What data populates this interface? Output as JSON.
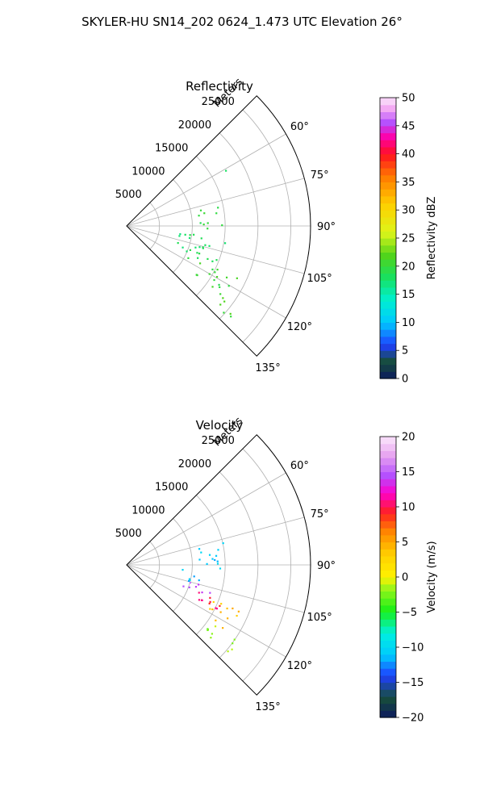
{
  "figure": {
    "suptitle": "SKYLER-HU  SN14_202  0624_1.473 UTC Elevation 26°"
  },
  "chart_data": [
    {
      "type": "polar-sector",
      "title": "Reflectivity",
      "range_label": "Meters",
      "theta_range_deg": [
        45,
        135
      ],
      "r_max": 28000,
      "radial_ticks": [
        5000,
        10000,
        15000,
        20000,
        25000
      ],
      "radial_tick_labels": [
        "5000",
        "10000",
        "15000",
        "20000",
        "25000"
      ],
      "angle_ticks": [
        60,
        75,
        90,
        105,
        120,
        135
      ],
      "angle_tick_labels": [
        "60°",
        "75°",
        "90°",
        "105°",
        "120°",
        "135°"
      ],
      "grid": true,
      "colorbar": {
        "label": "Reflectivity dBZ",
        "min": 0,
        "max": 50,
        "ticks": [
          0,
          5,
          10,
          15,
          20,
          25,
          30,
          35,
          40,
          45,
          50
        ],
        "tick_labels": [
          "0",
          "5",
          "10",
          "15",
          "20",
          "25",
          "30",
          "35",
          "40",
          "45",
          "50"
        ]
      },
      "echo_regions": [
        {
          "angle_deg": [
            76,
            82
          ],
          "range_m": [
            10500,
            15000
          ],
          "value": 19
        },
        {
          "angle_deg": [
            86,
            92
          ],
          "range_m": [
            10500,
            14500
          ],
          "value": 19
        },
        {
          "angle_deg": [
            94,
            103
          ],
          "range_m": [
            8000,
            12000
          ],
          "value": 18
        },
        {
          "angle_deg": [
            103,
            114
          ],
          "range_m": [
            8000,
            15500
          ],
          "value": 18
        },
        {
          "angle_deg": [
            114,
            126
          ],
          "range_m": [
            10000,
            19500
          ],
          "value": 20
        },
        {
          "angle_deg": [
            126,
            132
          ],
          "range_m": [
            17000,
            22000
          ],
          "value": 21
        },
        {
          "angle_deg": [
            60,
            64
          ],
          "range_m": [
            17000,
            18000
          ],
          "value": 18
        },
        {
          "angle_deg": [
            98,
            101
          ],
          "range_m": [
            15000,
            16000
          ],
          "value": 17
        }
      ]
    },
    {
      "type": "polar-sector",
      "title": "Velocity",
      "range_label": "Meters",
      "theta_range_deg": [
        45,
        135
      ],
      "r_max": 28000,
      "radial_ticks": [
        5000,
        10000,
        15000,
        20000,
        25000
      ],
      "radial_tick_labels": [
        "5000",
        "10000",
        "15000",
        "20000",
        "25000"
      ],
      "angle_ticks": [
        60,
        75,
        90,
        105,
        120,
        135
      ],
      "angle_tick_labels": [
        "60°",
        "75°",
        "90°",
        "105°",
        "120°",
        "135°"
      ],
      "grid": true,
      "colorbar": {
        "label": "Velocity (m/s)",
        "min": -20,
        "max": 20,
        "ticks": [
          -20,
          -15,
          -10,
          -5,
          0,
          5,
          10,
          15,
          20
        ],
        "tick_labels": [
          "−20",
          "−15",
          "−10",
          "−5",
          "0",
          "5",
          "10",
          "15",
          "20"
        ]
      },
      "echo_regions": [
        {
          "angle_deg": [
            76,
            92
          ],
          "range_m": [
            10500,
            15000
          ],
          "value": -11
        },
        {
          "angle_deg": [
            92,
            104
          ],
          "range_m": [
            8000,
            12000
          ],
          "value": -11
        },
        {
          "angle_deg": [
            104,
            112
          ],
          "range_m": [
            9000,
            13500
          ],
          "value": 15
        },
        {
          "angle_deg": [
            110,
            120
          ],
          "range_m": [
            10500,
            15500
          ],
          "value": 10
        },
        {
          "angle_deg": [
            112,
            124
          ],
          "range_m": [
            13500,
            18500
          ],
          "value": 4
        },
        {
          "angle_deg": [
            124,
            132
          ],
          "range_m": [
            15500,
            21000
          ],
          "value": -2
        },
        {
          "angle_deg": [
            95,
            100
          ],
          "range_m": [
            10500,
            11500
          ],
          "value": 14
        }
      ]
    }
  ]
}
